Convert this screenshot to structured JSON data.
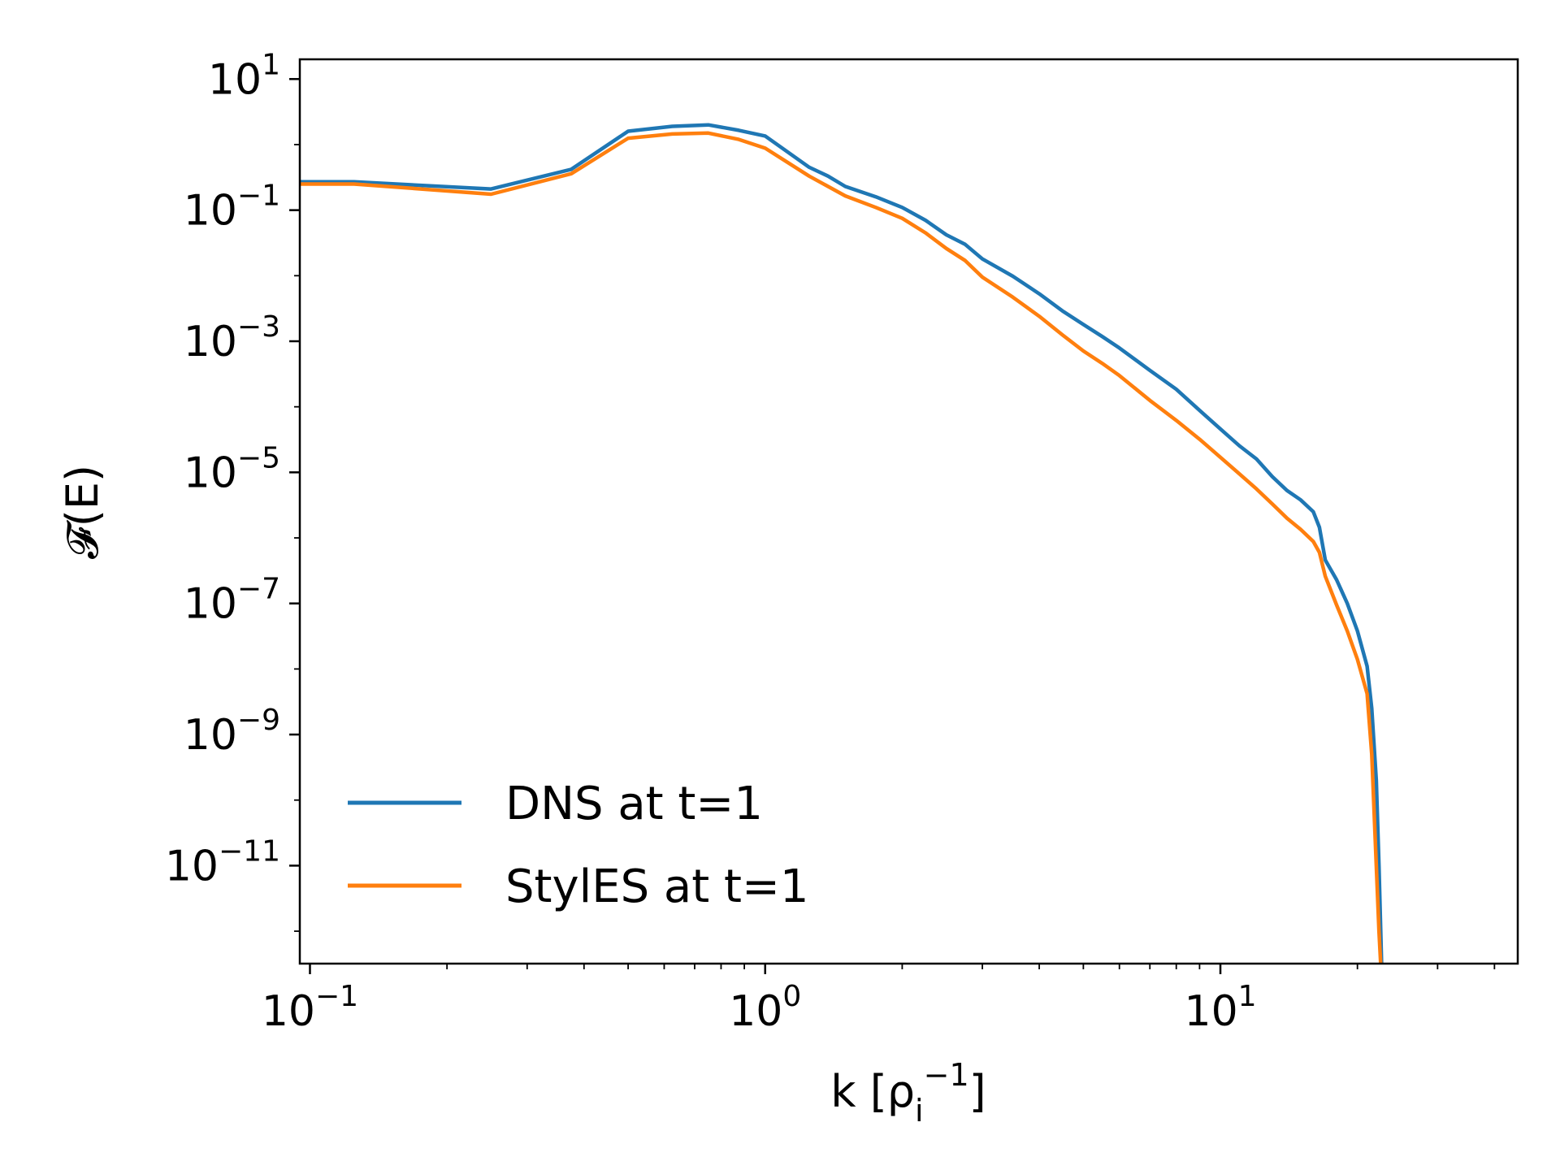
{
  "chart_data": {
    "type": "line",
    "title": "",
    "xlabel": "k [ρ",
    "xlabel_sub": "i",
    "xlabel_sup": "−1",
    "xlabel_close": "]",
    "ylabel": "𝓕(E)",
    "xscale": "log",
    "yscale": "log",
    "xlim": [
      0.095,
      45
    ],
    "ylim": [
      3.2e-13,
      20
    ],
    "grid": false,
    "legend_position": "lower-left",
    "x_ticks": [
      {
        "value": 0.1,
        "base": "10",
        "exp": "−1"
      },
      {
        "value": 1,
        "base": "10",
        "exp": "0"
      },
      {
        "value": 10,
        "base": "10",
        "exp": "1"
      }
    ],
    "y_ticks": [
      {
        "value": 10,
        "base": "10",
        "exp": "1"
      },
      {
        "value": 0.1,
        "base": "10",
        "exp": "−1"
      },
      {
        "value": 0.001,
        "base": "10",
        "exp": "−3"
      },
      {
        "value": 1e-05,
        "base": "10",
        "exp": "−5"
      },
      {
        "value": 1e-07,
        "base": "10",
        "exp": "−7"
      },
      {
        "value": 1e-09,
        "base": "10",
        "exp": "−9"
      },
      {
        "value": 1e-11,
        "base": "10",
        "exp": "−11"
      }
    ],
    "series": [
      {
        "name": "DNS at t=1",
        "color": "#1f77b4",
        "x": [
          0.095,
          0.125,
          0.25,
          0.375,
          0.5,
          0.625,
          0.75,
          0.875,
          1.0,
          1.25,
          1.375,
          1.5,
          1.75,
          2.0,
          2.25,
          2.5,
          2.75,
          3.0,
          3.5,
          4.0,
          4.5,
          5.0,
          5.5,
          6.0,
          7.0,
          8.0,
          9.0,
          10.0,
          11.0,
          12.0,
          13.0,
          14.0,
          15.0,
          16.0,
          16.5,
          17.0,
          18.0,
          19.0,
          20.0,
          21.0,
          21.5,
          22.0,
          22.3,
          22.6
        ],
        "y": [
          0.27,
          0.27,
          0.21,
          0.42,
          1.6,
          1.9,
          2.0,
          1.65,
          1.35,
          0.45,
          0.33,
          0.23,
          0.16,
          0.11,
          0.07,
          0.042,
          0.03,
          0.018,
          0.0098,
          0.0053,
          0.0029,
          0.0018,
          0.00118,
          0.00079,
          0.00036,
          0.000185,
          8.8e-05,
          4.6e-05,
          2.55e-05,
          1.6e-05,
          8.6e-06,
          5.3e-06,
          3.8e-06,
          2.5e-06,
          1.45e-06,
          4.6e-07,
          2.3e-07,
          1e-07,
          3.8e-08,
          1.1e-08,
          2.5e-09,
          2e-10,
          1e-11,
          3.2e-13
        ]
      },
      {
        "name": "StylES at t=1",
        "color": "#ff7f0e",
        "x": [
          0.095,
          0.125,
          0.25,
          0.375,
          0.5,
          0.625,
          0.75,
          0.875,
          1.0,
          1.25,
          1.375,
          1.5,
          1.75,
          2.0,
          2.25,
          2.5,
          2.75,
          3.0,
          3.5,
          4.0,
          4.5,
          5.0,
          5.5,
          6.0,
          7.0,
          8.0,
          9.0,
          10.0,
          11.0,
          12.0,
          13.0,
          14.0,
          15.0,
          16.0,
          16.5,
          17.0,
          18.0,
          19.0,
          20.0,
          21.0,
          21.5,
          22.0,
          22.3,
          22.5
        ],
        "y": [
          0.25,
          0.25,
          0.175,
          0.36,
          1.25,
          1.45,
          1.5,
          1.2,
          0.88,
          0.33,
          0.23,
          0.165,
          0.11,
          0.075,
          0.045,
          0.026,
          0.017,
          0.0095,
          0.0047,
          0.0024,
          0.00125,
          0.00071,
          0.00046,
          0.0003,
          0.000125,
          6.2e-05,
          3.2e-05,
          1.7e-05,
          9.5e-06,
          5.6e-06,
          3.3e-06,
          2e-06,
          1.35e-06,
          8.8e-07,
          6e-07,
          2.6e-07,
          9.5e-08,
          3.8e-08,
          1.4e-08,
          4.2e-09,
          5e-10,
          1e-11,
          1e-12,
          3.2e-13
        ]
      }
    ]
  }
}
